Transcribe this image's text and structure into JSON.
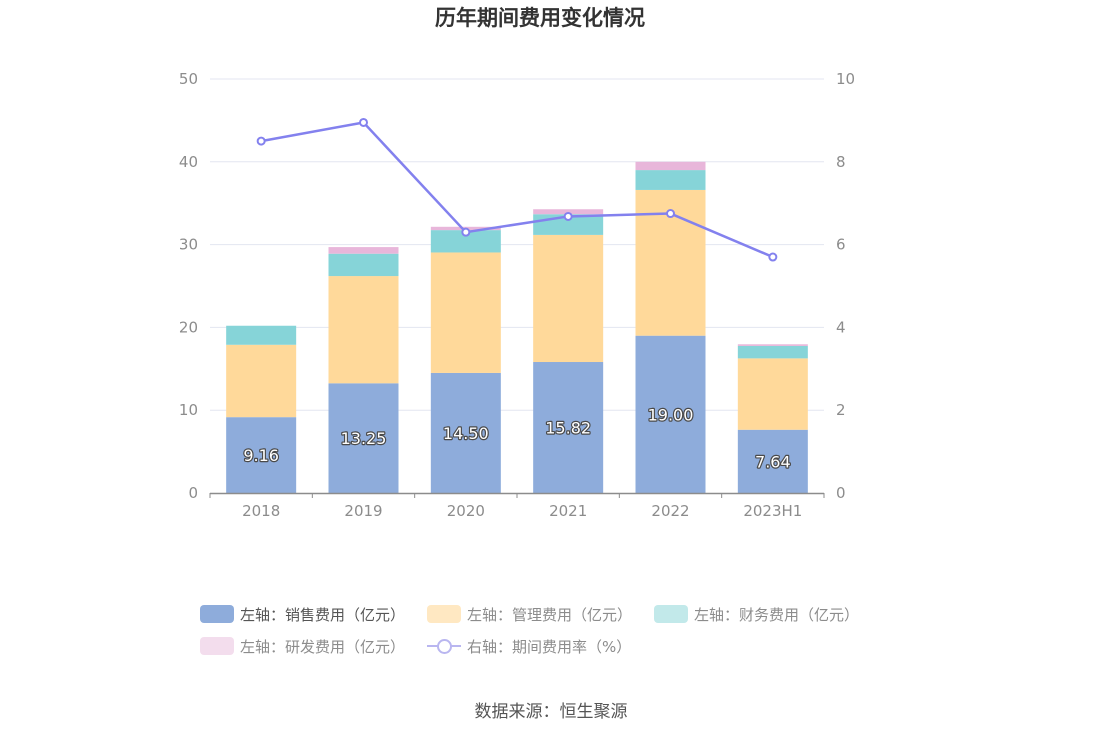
{
  "chart_data": {
    "type": "bar",
    "title": "历年期间费用变化情况",
    "categories": [
      "2018",
      "2019",
      "2020",
      "2021",
      "2022",
      "2023H1"
    ],
    "y_left": {
      "min": 0,
      "max": 50,
      "ticks": [
        0,
        10,
        20,
        30,
        40,
        50
      ]
    },
    "y_right": {
      "min": 0,
      "max": 10,
      "ticks": [
        0,
        2,
        4,
        6,
        8,
        10
      ]
    },
    "grid": true,
    "legend_position": "bottom",
    "series": [
      {
        "name": "左轴：销售费用（亿元）",
        "axis": "left",
        "stack": "cost",
        "color": "#8eacdb",
        "values": [
          9.16,
          13.25,
          14.5,
          15.82,
          19.0,
          7.64
        ],
        "data_labels": [
          "9.16",
          "13.25",
          "14.50",
          "15.82",
          "19.00",
          "7.64"
        ]
      },
      {
        "name": "左轴：管理费用（亿元）",
        "axis": "left",
        "stack": "cost",
        "color": "#ffd99a",
        "values": [
          8.74,
          12.95,
          14.55,
          15.35,
          17.6,
          8.62
        ]
      },
      {
        "name": "左轴：财务费用（亿元）",
        "axis": "left",
        "stack": "cost",
        "color": "#86d4d8",
        "values": [
          2.3,
          2.7,
          2.7,
          2.5,
          2.4,
          1.5
        ]
      },
      {
        "name": "左轴：研发费用（亿元）",
        "axis": "left",
        "stack": "cost",
        "color": "#e8b6da",
        "values": [
          0.0,
          0.8,
          0.4,
          0.6,
          1.0,
          0.2
        ]
      },
      {
        "name": "右轴：期间费用率（%）",
        "axis": "right",
        "type": "line",
        "color": "#8381ee",
        "values": [
          8.5,
          8.95,
          6.3,
          6.68,
          6.75,
          5.7
        ]
      }
    ]
  },
  "legend": {
    "items": [
      {
        "label": "左轴：销售费用（亿元）",
        "color": "#8eacdb",
        "kind": "box"
      },
      {
        "label": "左轴：管理费用（亿元）",
        "color": "#ffe8c2",
        "kind": "box"
      },
      {
        "label": "左轴：财务费用（亿元）",
        "color": "#c2e9ea",
        "kind": "box"
      },
      {
        "label": "左轴：研发费用（亿元）",
        "color": "#f3dded",
        "kind": "box"
      },
      {
        "label": "右轴：期间费用率（%）",
        "color": "#b9b6f0",
        "kind": "line"
      }
    ]
  },
  "source": "数据来源：恒生聚源"
}
